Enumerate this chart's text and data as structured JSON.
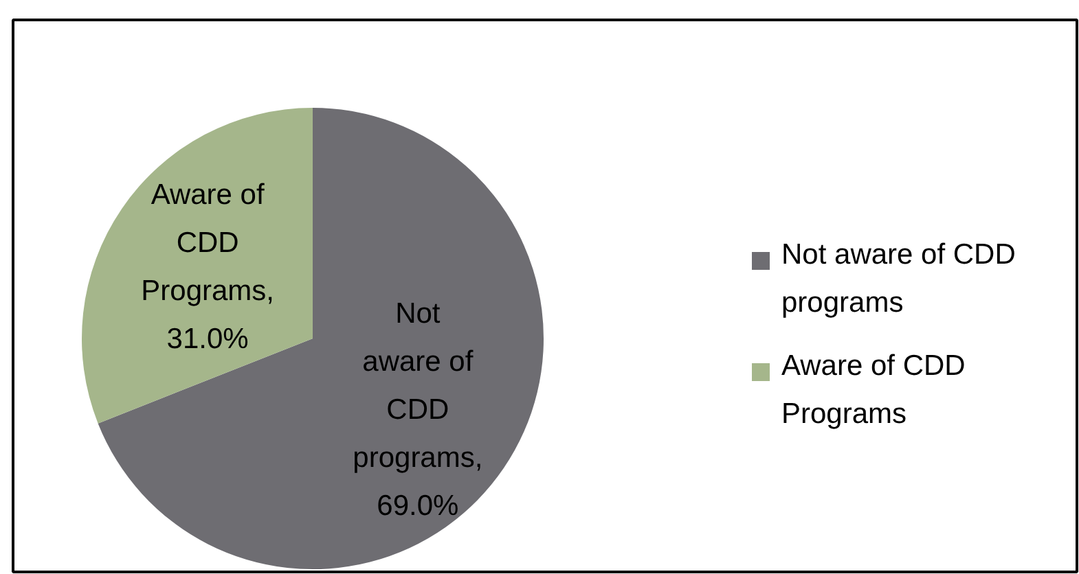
{
  "chart_data": {
    "type": "pie",
    "categories": [
      "Not aware of CDD programs",
      "Aware of CDD Programs"
    ],
    "values": [
      69.0,
      31.0
    ],
    "colors": [
      "#6e6d72",
      "#a5b68b"
    ],
    "value_labels": [
      "Not aware of CDD programs, 69.0%",
      "Aware of CDD Programs, 31.0%"
    ],
    "legend": "right"
  }
}
